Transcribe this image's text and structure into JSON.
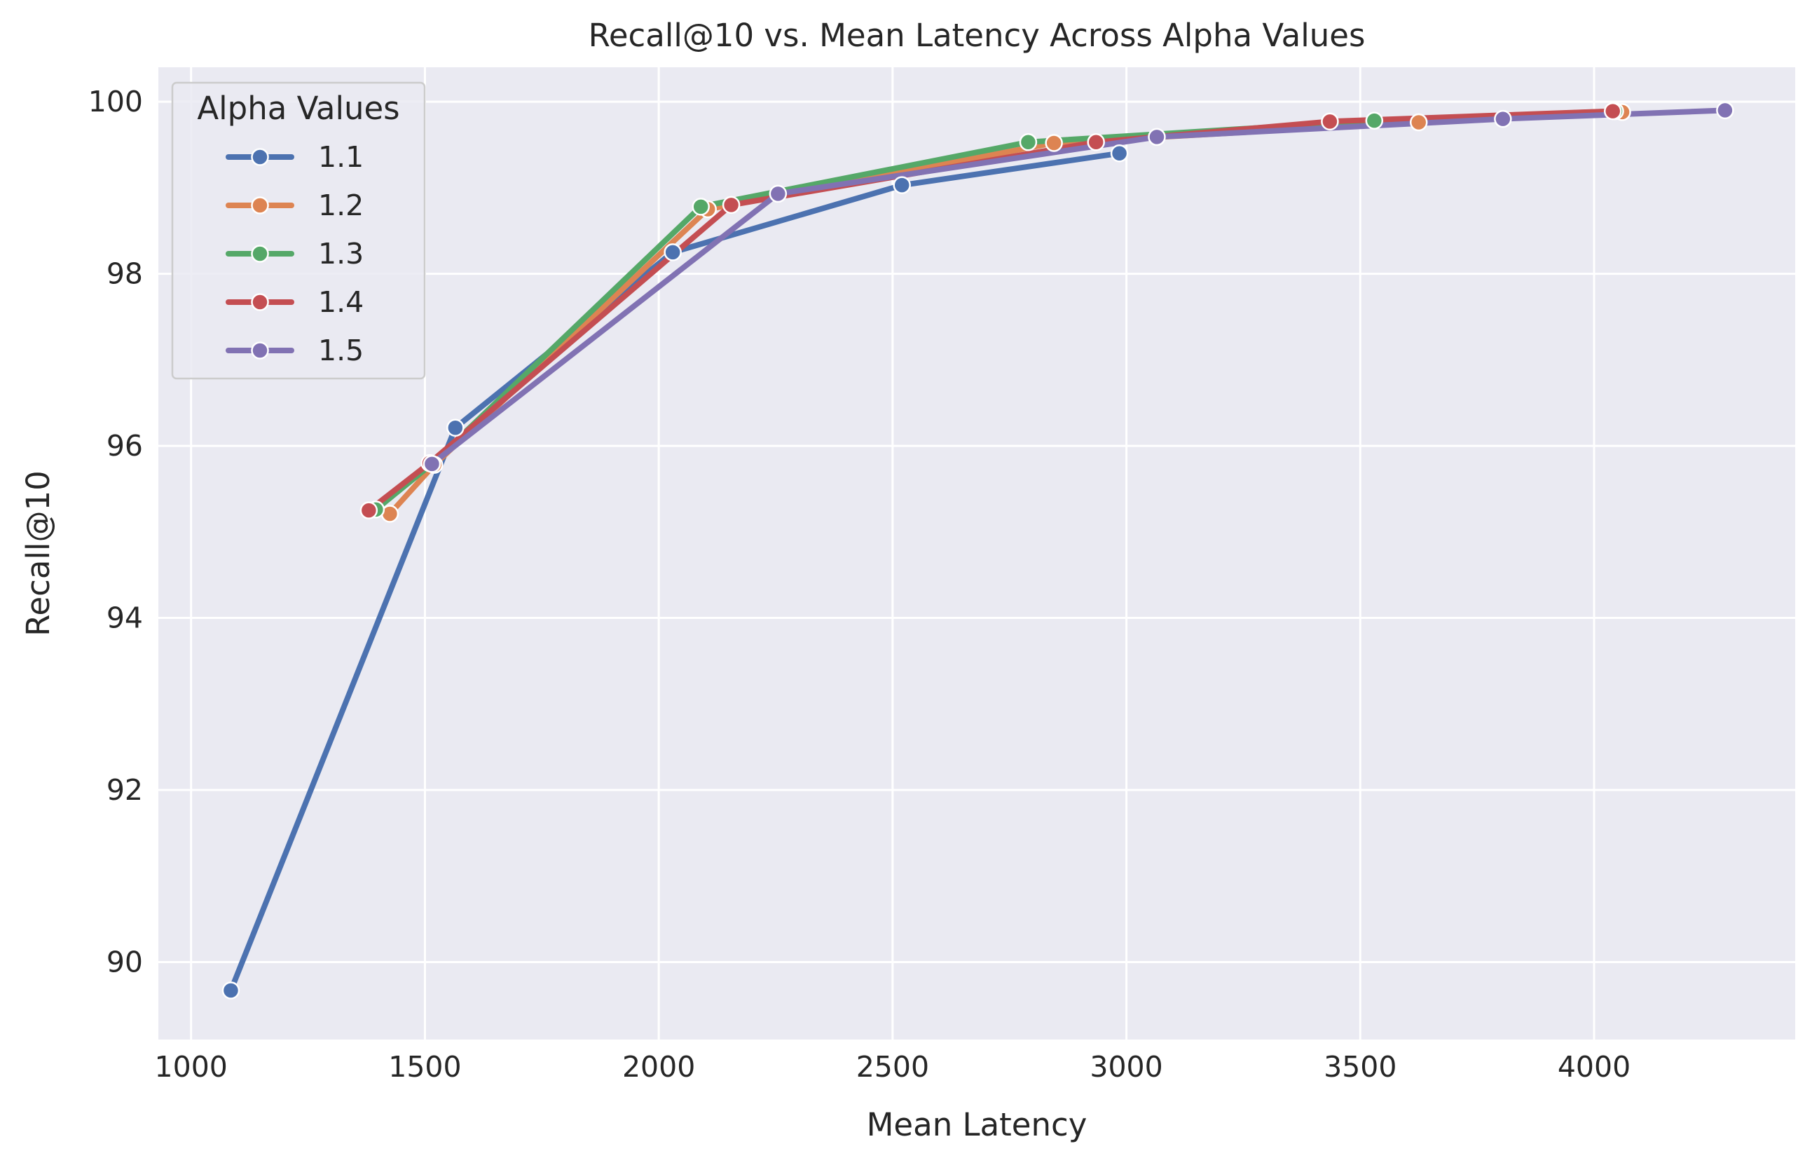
{
  "chart_data": {
    "type": "line",
    "title": "Recall@10 vs. Mean Latency Across Alpha Values",
    "xlabel": "Mean Latency",
    "ylabel": "Recall@10",
    "xlim": [
      930,
      4430
    ],
    "ylim": [
      89.1,
      100.4
    ],
    "xticks": [
      1000,
      1500,
      2000,
      2500,
      3000,
      3500,
      4000
    ],
    "yticks": [
      90,
      92,
      94,
      96,
      98,
      100
    ],
    "grid": true,
    "legend": {
      "title": "Alpha Values",
      "position": "top-left"
    },
    "series": [
      {
        "name": "1.1",
        "color": "#4c72b0",
        "x": [
          1085,
          1565,
          2030,
          2520,
          2985
        ],
        "y": [
          89.67,
          96.21,
          98.25,
          99.03,
          99.4
        ]
      },
      {
        "name": "1.2",
        "color": "#dd8452",
        "x": [
          1425,
          1520,
          2105,
          2845,
          3625,
          4060
        ],
        "y": [
          95.21,
          95.78,
          98.75,
          99.52,
          99.76,
          99.88
        ]
      },
      {
        "name": "1.3",
        "color": "#55a868",
        "x": [
          1395,
          1515,
          2090,
          2790,
          3530,
          4045
        ],
        "y": [
          95.26,
          95.79,
          98.78,
          99.53,
          99.78,
          99.89
        ]
      },
      {
        "name": "1.4",
        "color": "#c44e52",
        "x": [
          1380,
          1510,
          2155,
          2935,
          3435,
          4040
        ],
        "y": [
          95.25,
          95.8,
          98.8,
          99.53,
          99.77,
          99.89
        ]
      },
      {
        "name": "1.5",
        "color": "#8172b3",
        "x": [
          1515,
          2255,
          3065,
          3805,
          4280
        ],
        "y": [
          95.79,
          98.93,
          99.59,
          99.8,
          99.9
        ]
      }
    ]
  }
}
